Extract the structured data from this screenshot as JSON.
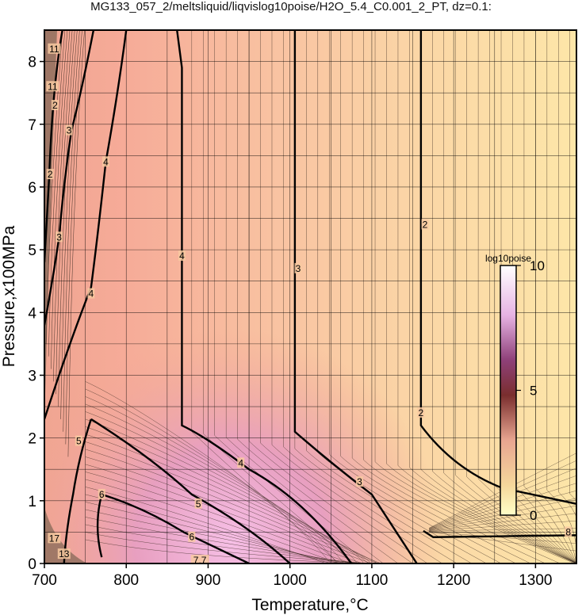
{
  "title": "MG133_057_2/meltsliquid/liqvislog10poise/H2O_5.4_C0.001_2_PT, dz=0.1:",
  "chart_data": {
    "type": "heatmap",
    "xlabel": "Temperature,°C",
    "ylabel": "Pressure,x100MPa",
    "xlim": [
      700,
      1350
    ],
    "ylim": [
      0,
      8.5
    ],
    "xticks": [
      "700",
      "800",
      "900",
      "1000",
      "1100",
      "1200",
      "1300"
    ],
    "yticks": [
      "0",
      "1",
      "2",
      "3",
      "4",
      "5",
      "6",
      "7",
      "8"
    ],
    "grid": true,
    "contour_interval": 0.1,
    "colorbar": {
      "label": "log10poise",
      "range": [
        0,
        10
      ],
      "ticks": [
        "0",
        "5",
        "10"
      ],
      "colors": [
        "#ffffc8",
        "#f5c89b",
        "#dca08c",
        "#8a3a3a",
        "#9b4a8a",
        "#e6b4e6",
        "#ffffff"
      ]
    },
    "contour_labels": [
      {
        "text": "2",
        "t": 1165,
        "p": 5.4
      },
      {
        "text": "2",
        "t": 1160,
        "p": 2.4
      },
      {
        "text": "3",
        "t": 1010,
        "p": 4.7
      },
      {
        "text": "3",
        "t": 1085,
        "p": 1.3
      },
      {
        "text": "4",
        "t": 868,
        "p": 4.9
      },
      {
        "text": "4",
        "t": 940,
        "p": 1.6
      },
      {
        "text": "4",
        "t": 775,
        "p": 6.4
      },
      {
        "text": "4",
        "t": 757,
        "p": 4.3
      },
      {
        "text": "5",
        "t": 742,
        "p": 1.95
      },
      {
        "text": "5",
        "t": 888,
        "p": 0.95
      },
      {
        "text": "6",
        "t": 770,
        "p": 1.1
      },
      {
        "text": "6",
        "t": 880,
        "p": 0.42
      },
      {
        "text": "3",
        "t": 730,
        "p": 6.9
      },
      {
        "text": "3",
        "t": 718,
        "p": 5.2
      },
      {
        "text": "2",
        "t": 707,
        "p": 6.2
      },
      {
        "text": "2",
        "t": 713,
        "p": 7.3
      },
      {
        "text": "11",
        "t": 712,
        "p": 8.2
      },
      {
        "text": "11",
        "t": 710,
        "p": 7.6
      },
      {
        "text": "7.7",
        "t": 890,
        "p": 0.05
      },
      {
        "text": "17",
        "t": 712,
        "p": 0.4
      },
      {
        "text": "13",
        "t": 724,
        "p": 0.15
      },
      {
        "text": "8",
        "t": 1340,
        "p": 0.5
      }
    ]
  }
}
